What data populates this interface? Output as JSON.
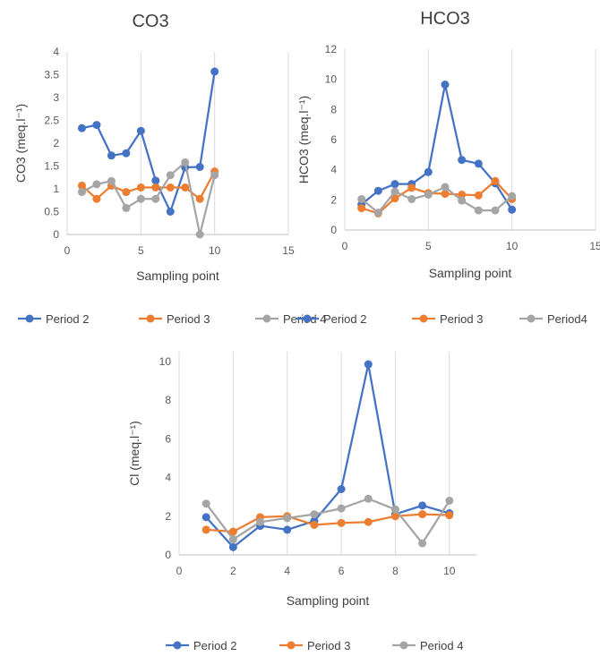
{
  "chart_data": [
    {
      "type": "line",
      "title": "CO3",
      "xlabel": "Sampling point",
      "ylabel": "CO3 (meq.l⁻¹)",
      "xlim": [
        0,
        15
      ],
      "ylim": [
        0,
        4
      ],
      "xticks": [
        "0",
        "5",
        "10",
        "15"
      ],
      "yticks": [
        "0",
        "0.5",
        "1",
        "1.5",
        "2",
        "2.5",
        "3",
        "3.5",
        "4"
      ],
      "grid": "vertical",
      "legend": "bottom",
      "series": [
        {
          "name": "Period 2",
          "color": "#4472C4",
          "x": [
            1,
            2,
            3,
            4,
            5,
            6,
            7,
            8,
            9,
            10
          ],
          "y": [
            2.33,
            2.4,
            1.73,
            1.78,
            2.27,
            1.18,
            0.5,
            1.47,
            1.48,
            3.57
          ]
        },
        {
          "name": "Period 3",
          "color": "#ED7D31",
          "x": [
            1,
            2,
            3,
            4,
            5,
            6,
            7,
            8,
            9,
            10
          ],
          "y": [
            1.07,
            0.78,
            1.07,
            0.93,
            1.03,
            1.03,
            1.03,
            1.03,
            0.78,
            1.38
          ]
        },
        {
          "name": "Period 4",
          "color": "#A5A5A5",
          "x": [
            1,
            2,
            3,
            4,
            5,
            6,
            7,
            8,
            9,
            10
          ],
          "y": [
            0.93,
            1.1,
            1.17,
            0.58,
            0.78,
            0.78,
            1.3,
            1.58,
            0.0,
            1.3
          ]
        }
      ]
    },
    {
      "type": "line",
      "title": "HCO3",
      "xlabel": "Sampling point",
      "ylabel": "HCO3 (meq.l⁻¹)",
      "xlim": [
        0,
        15
      ],
      "ylim": [
        0,
        12
      ],
      "xticks": [
        "0",
        "5",
        "10",
        "15"
      ],
      "yticks": [
        "0",
        "2",
        "4",
        "6",
        "8",
        "10",
        "12"
      ],
      "grid": "vertical",
      "legend": "bottom",
      "series": [
        {
          "name": "Period 2",
          "color": "#4472C4",
          "x": [
            1,
            2,
            3,
            4,
            5,
            6,
            7,
            8,
            9,
            10
          ],
          "y": [
            1.7,
            2.6,
            3.05,
            3.05,
            3.85,
            9.65,
            4.65,
            4.4,
            3.1,
            1.35
          ]
        },
        {
          "name": "Period 3",
          "color": "#ED7D31",
          "x": [
            1,
            2,
            3,
            4,
            5,
            6,
            7,
            8,
            9,
            10
          ],
          "y": [
            1.45,
            1.1,
            2.1,
            2.8,
            2.45,
            2.4,
            2.35,
            2.3,
            3.25,
            2.05
          ]
        },
        {
          "name": "Period4",
          "color": "#A5A5A5",
          "x": [
            1,
            2,
            3,
            4,
            5,
            6,
            7,
            8,
            9,
            10
          ],
          "y": [
            2.05,
            1.15,
            2.55,
            2.05,
            2.35,
            2.85,
            1.95,
            1.3,
            1.3,
            2.25
          ]
        }
      ]
    },
    {
      "type": "line",
      "title": "",
      "xlabel": "Sampling point",
      "ylabel": "Cl (meq.l⁻¹)",
      "xlim": [
        0,
        11
      ],
      "ylim": [
        0,
        10.5
      ],
      "xticks": [
        "0",
        "2",
        "4",
        "6",
        "8",
        "10"
      ],
      "yticks": [
        "0",
        "2",
        "4",
        "6",
        "8",
        "10"
      ],
      "grid": "vertical",
      "legend": "bottom",
      "series": [
        {
          "name": "Period 2",
          "color": "#4472C4",
          "x": [
            1,
            2,
            3,
            4,
            5,
            6,
            7,
            8,
            9,
            10
          ],
          "y": [
            1.95,
            0.4,
            1.5,
            1.3,
            1.75,
            3.4,
            9.85,
            2.1,
            2.55,
            2.15
          ]
        },
        {
          "name": "Period 3",
          "color": "#ED7D31",
          "x": [
            1,
            2,
            3,
            4,
            5,
            6,
            7,
            8,
            9,
            10
          ],
          "y": [
            1.3,
            1.2,
            1.95,
            2.0,
            1.55,
            1.65,
            1.7,
            2.0,
            2.1,
            2.05
          ]
        },
        {
          "name": "Period 4",
          "color": "#A5A5A5",
          "x": [
            1,
            2,
            3,
            4,
            5,
            6,
            7,
            8,
            9,
            10
          ],
          "y": [
            2.65,
            0.8,
            1.7,
            1.9,
            2.1,
            2.4,
            2.9,
            2.35,
            0.6,
            2.8
          ]
        }
      ]
    }
  ]
}
